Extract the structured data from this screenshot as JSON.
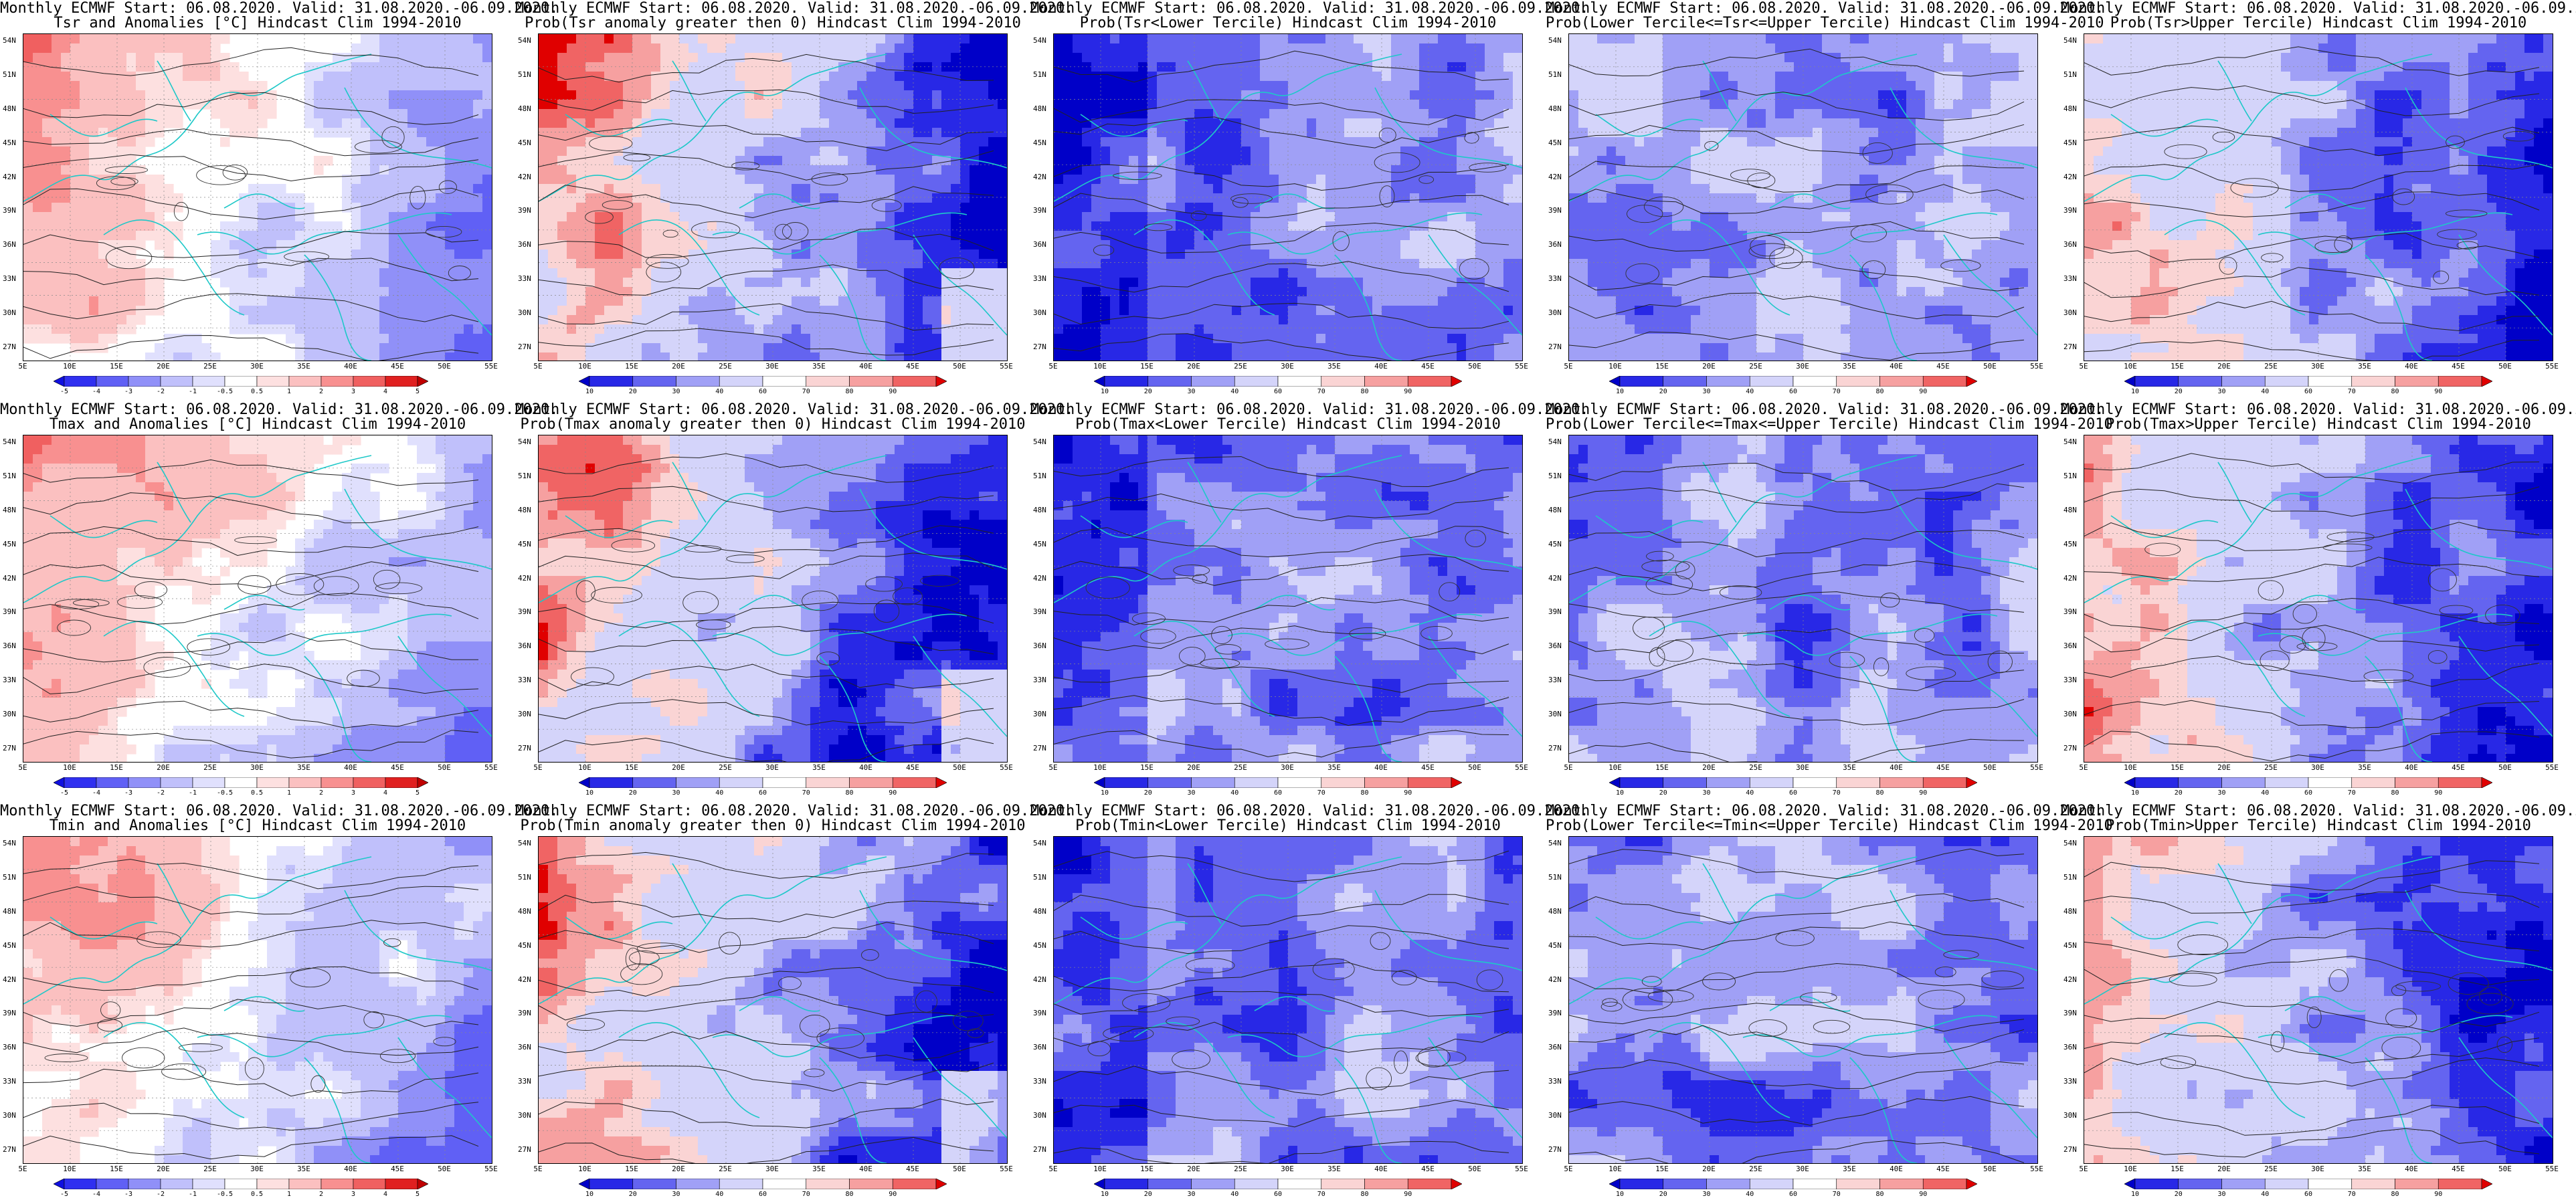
{
  "header_line1": "Monthly ECMWF Start: 06.08.2020. Valid: 31.08.2020.-06.09.2020.",
  "lat_labels": [
    "54N",
    "51N",
    "48N",
    "45N",
    "42N",
    "39N",
    "36N",
    "33N",
    "30N",
    "27N"
  ],
  "lon_labels": [
    "5E",
    "10E",
    "15E",
    "20E",
    "25E",
    "30E",
    "35E",
    "40E",
    "45E",
    "50E",
    "55E"
  ],
  "anomaly_colorbar": {
    "labels": [
      "-5",
      "-4",
      "-3",
      "-2",
      "-1",
      "-0.5",
      "0.5",
      "1",
      "2",
      "3",
      "4",
      "5"
    ],
    "colors": [
      "#1010e0",
      "#3030f0",
      "#6060f5",
      "#9090f8",
      "#c0c0fb",
      "#e0e0fd",
      "#ffffff",
      "#fde0e0",
      "#fbc0c0",
      "#f89090",
      "#f06060",
      "#e02020",
      "#c00000"
    ]
  },
  "prob_colorbar": {
    "labels": [
      "10",
      "20",
      "30",
      "40",
      "60",
      "70",
      "80",
      "90"
    ],
    "colors": [
      "#0000c8",
      "#2828e6",
      "#6464f0",
      "#a0a0f6",
      "#d4d4fa",
      "#ffffff",
      "#fad4d4",
      "#f6a0a0",
      "#f06464",
      "#e00000"
    ]
  },
  "panels": [
    {
      "title": "Tsr and Anomalies [°C] Hindcast Clim 1994-2010",
      "type": "anom",
      "pattern": "anom"
    },
    {
      "title": "Prob(Tsr anomaly greater then 0) Hindcast Clim 1994-2010",
      "type": "prob",
      "pattern": "warm"
    },
    {
      "title": "Prob(Tsr<Lower Tercile) Hindcast Clim 1994-2010",
      "type": "prob",
      "pattern": "lower"
    },
    {
      "title": "Prob(Lower Tercile<=Tsr<=Upper Tercile) Hindcast Clim 1994-2010",
      "type": "prob",
      "pattern": "middle"
    },
    {
      "title": "Prob(Tsr>Upper Tercile) Hindcast Clim 1994-2010",
      "type": "prob",
      "pattern": "upper"
    },
    {
      "title": "Tmax and Anomalies [°C] Hindcast Clim 1994-2010",
      "type": "anom",
      "pattern": "anom"
    },
    {
      "title": "Prob(Tmax anomaly greater then 0) Hindcast Clim 1994-2010",
      "type": "prob",
      "pattern": "warm"
    },
    {
      "title": "Prob(Tmax<Lower Tercile) Hindcast Clim 1994-2010",
      "type": "prob",
      "pattern": "lower"
    },
    {
      "title": "Prob(Lower Tercile<=Tmax<=Upper Tercile) Hindcast Clim 1994-2010",
      "type": "prob",
      "pattern": "middle"
    },
    {
      "title": "Prob(Tmax>Upper Tercile) Hindcast Clim 1994-2010",
      "type": "prob",
      "pattern": "upper"
    },
    {
      "title": "Tmin and Anomalies [°C] Hindcast Clim 1994-2010",
      "type": "anom",
      "pattern": "anom"
    },
    {
      "title": "Prob(Tmin anomaly greater then 0) Hindcast Clim 1994-2010",
      "type": "prob",
      "pattern": "warm"
    },
    {
      "title": "Prob(Tmin<Lower Tercile) Hindcast Clim 1994-2010",
      "type": "prob",
      "pattern": "lower"
    },
    {
      "title": "Prob(Lower Tercile<=Tmin<=Upper Tercile) Hindcast Clim 1994-2010",
      "type": "prob",
      "pattern": "middle"
    },
    {
      "title": "Prob(Tmin>Upper Tercile) Hindcast Clim 1994-2010",
      "type": "prob",
      "pattern": "upper"
    }
  ]
}
